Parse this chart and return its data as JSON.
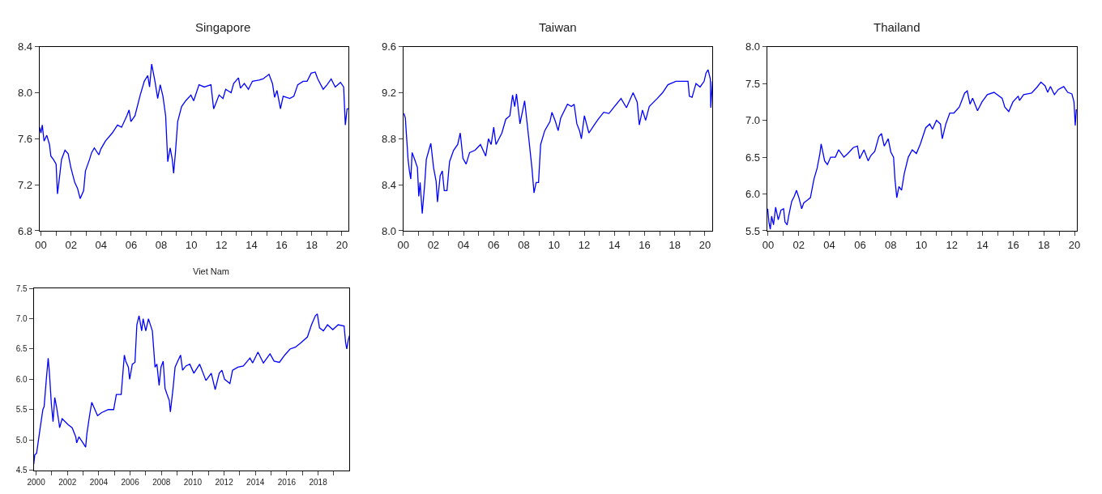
{
  "chart_data": [
    {
      "type": "line",
      "title": "Singapore",
      "xlim": [
        1999.9,
        2020.45
      ],
      "ylim": [
        6.8,
        8.4
      ],
      "yticks": [
        6.8,
        7.2,
        7.6,
        {
          "value": 8,
          "label": "8.0"
        },
        8.4
      ],
      "xticks": [
        {
          "value": 2000,
          "label": "00"
        },
        {
          "value": 2001,
          "label": null
        },
        {
          "value": 2002,
          "label": "02"
        },
        {
          "value": 2003,
          "label": null
        },
        {
          "value": 2004,
          "label": "04"
        },
        {
          "value": 2005,
          "label": null
        },
        {
          "value": 2006,
          "label": "06"
        },
        {
          "value": 2007,
          "label": null
        },
        {
          "value": 2008,
          "label": "08"
        },
        {
          "value": 2009,
          "label": null
        },
        {
          "value": 2010,
          "label": "10"
        },
        {
          "value": 2011,
          "label": null
        },
        {
          "value": 2012,
          "label": "12"
        },
        {
          "value": 2013,
          "label": null
        },
        {
          "value": 2014,
          "label": "14"
        },
        {
          "value": 2015,
          "label": null
        },
        {
          "value": 2016,
          "label": "16"
        },
        {
          "value": 2017,
          "label": null
        },
        {
          "value": 2018,
          "label": "18"
        },
        {
          "value": 2019,
          "label": null
        },
        {
          "value": 2020,
          "label": "20"
        }
      ],
      "x": [
        1999.91,
        2000.0,
        2000.09,
        2000.21,
        2000.39,
        2000.57,
        2000.66,
        2000.83,
        2001.01,
        2001.1,
        2001.22,
        2001.37,
        2001.6,
        2001.81,
        2001.99,
        2002.25,
        2002.43,
        2002.61,
        2002.84,
        2002.96,
        2003.23,
        2003.37,
        2003.55,
        2003.85,
        2003.98,
        2004.29,
        2004.74,
        2005.09,
        2005.36,
        2005.71,
        2005.86,
        2005.98,
        2006.25,
        2006.6,
        2006.87,
        2007.1,
        2007.22,
        2007.36,
        2007.58,
        2007.76,
        2007.93,
        2008.11,
        2008.29,
        2008.43,
        2008.59,
        2008.73,
        2008.82,
        2008.94,
        2009.09,
        2009.35,
        2009.62,
        2009.97,
        2010.15,
        2010.51,
        2010.86,
        2011.3,
        2011.48,
        2011.66,
        2011.84,
        2012.1,
        2012.28,
        2012.64,
        2012.81,
        2013.13,
        2013.26,
        2013.52,
        2013.79,
        2014.06,
        2014.5,
        2014.76,
        2015.16,
        2015.39,
        2015.53,
        2015.69,
        2015.92,
        2016.1,
        2016.54,
        2016.81,
        2017.07,
        2017.43,
        2017.69,
        2017.96,
        2018.23,
        2018.4,
        2018.76,
        2019.02,
        2019.29,
        2019.56,
        2019.91,
        2020.12,
        2020.23,
        2020.35,
        2020.44
      ],
      "series": [
        {
          "color": "#0000ff",
          "values": [
            7.7,
            7.65,
            7.72,
            7.58,
            7.63,
            7.55,
            7.45,
            7.42,
            7.38,
            7.12,
            7.25,
            7.42,
            7.5,
            7.47,
            7.35,
            7.22,
            7.17,
            7.08,
            7.15,
            7.32,
            7.42,
            7.48,
            7.52,
            7.46,
            7.51,
            7.58,
            7.65,
            7.72,
            7.7,
            7.8,
            7.85,
            7.75,
            7.8,
            7.98,
            8.1,
            8.15,
            8.05,
            8.25,
            8.1,
            7.95,
            8.07,
            7.97,
            7.8,
            7.4,
            7.52,
            7.42,
            7.3,
            7.48,
            7.75,
            7.88,
            7.93,
            7.98,
            7.93,
            8.07,
            8.05,
            8.07,
            7.86,
            7.92,
            7.98,
            7.95,
            8.03,
            8.0,
            8.08,
            8.13,
            8.04,
            8.08,
            8.03,
            8.1,
            8.11,
            8.12,
            8.16,
            8.08,
            7.96,
            8.02,
            7.86,
            7.97,
            7.95,
            7.97,
            8.07,
            8.1,
            8.1,
            8.17,
            8.18,
            8.12,
            8.03,
            8.07,
            8.12,
            8.05,
            8.09,
            8.05,
            7.72,
            7.86,
            7.86
          ]
        }
      ]
    },
    {
      "type": "line",
      "title": "Taiwan",
      "xlim": [
        2000.0,
        2020.5
      ],
      "ylim": [
        8.0,
        9.6
      ],
      "yticks": [
        {
          "value": 8,
          "label": "8.0"
        },
        8.4,
        8.8,
        9.2,
        9.6
      ],
      "xticks": [
        {
          "value": 2000,
          "label": "00"
        },
        {
          "value": 2001,
          "label": null
        },
        {
          "value": 2002,
          "label": "02"
        },
        {
          "value": 2003,
          "label": null
        },
        {
          "value": 2004,
          "label": "04"
        },
        {
          "value": 2005,
          "label": null
        },
        {
          "value": 2006,
          "label": "06"
        },
        {
          "value": 2007,
          "label": null
        },
        {
          "value": 2008,
          "label": "08"
        },
        {
          "value": 2009,
          "label": null
        },
        {
          "value": 2010,
          "label": "10"
        },
        {
          "value": 2011,
          "label": null
        },
        {
          "value": 2012,
          "label": "12"
        },
        {
          "value": 2013,
          "label": null
        },
        {
          "value": 2014,
          "label": "14"
        },
        {
          "value": 2015,
          "label": null
        },
        {
          "value": 2016,
          "label": "16"
        },
        {
          "value": 2017,
          "label": null
        },
        {
          "value": 2018,
          "label": "18"
        },
        {
          "value": 2019,
          "label": null
        },
        {
          "value": 2020,
          "label": "20"
        }
      ],
      "x": [
        2000.05,
        2000.14,
        2000.23,
        2000.32,
        2000.41,
        2000.5,
        2000.59,
        2000.76,
        2000.94,
        2001.03,
        2001.12,
        2001.26,
        2001.42,
        2001.53,
        2001.74,
        2001.83,
        2002.01,
        2002.18,
        2002.27,
        2002.45,
        2002.59,
        2002.72,
        2002.9,
        2003.07,
        2003.34,
        2003.61,
        2003.78,
        2003.96,
        2004.17,
        2004.4,
        2004.76,
        2005.12,
        2005.47,
        2005.65,
        2005.83,
        2006.0,
        2006.15,
        2006.54,
        2006.8,
        2007.07,
        2007.25,
        2007.39,
        2007.51,
        2007.74,
        2008.05,
        2008.31,
        2008.53,
        2008.67,
        2008.81,
        2008.97,
        2009.11,
        2009.38,
        2009.73,
        2009.86,
        2010.09,
        2010.27,
        2010.44,
        2010.89,
        2011.15,
        2011.33,
        2011.51,
        2011.69,
        2011.81,
        2012.01,
        2012.31,
        2012.66,
        2012.93,
        2013.29,
        2013.64,
        2014.0,
        2014.44,
        2014.8,
        2015.24,
        2015.51,
        2015.65,
        2015.86,
        2016.07,
        2016.31,
        2016.84,
        2017.19,
        2017.55,
        2018.08,
        2018.61,
        2018.88,
        2018.97,
        2019.15,
        2019.41,
        2019.68,
        2019.95,
        2020.07,
        2020.21,
        2020.36,
        2020.39,
        2020.5
      ],
      "series": [
        {
          "color": "#0000ff",
          "values": [
            9.02,
            8.98,
            8.8,
            8.62,
            8.52,
            8.45,
            8.68,
            8.62,
            8.55,
            8.3,
            8.42,
            8.15,
            8.4,
            8.62,
            8.72,
            8.76,
            8.55,
            8.43,
            8.25,
            8.48,
            8.52,
            8.35,
            8.35,
            8.6,
            8.7,
            8.75,
            8.85,
            8.63,
            8.58,
            8.68,
            8.7,
            8.75,
            8.65,
            8.8,
            8.75,
            8.9,
            8.75,
            8.85,
            8.97,
            9.0,
            9.18,
            9.08,
            9.19,
            8.93,
            9.13,
            8.82,
            8.55,
            8.33,
            8.42,
            8.42,
            8.75,
            8.87,
            8.95,
            9.03,
            8.95,
            8.87,
            8.98,
            9.1,
            9.08,
            9.1,
            8.93,
            8.87,
            8.8,
            9.0,
            8.85,
            8.92,
            8.97,
            9.03,
            9.02,
            9.08,
            9.15,
            9.07,
            9.2,
            9.12,
            8.92,
            9.05,
            8.96,
            9.08,
            9.15,
            9.2,
            9.27,
            9.3,
            9.3,
            9.3,
            9.17,
            9.16,
            9.28,
            9.25,
            9.3,
            9.37,
            9.4,
            9.32,
            9.07,
            9.3
          ]
        }
      ]
    },
    {
      "type": "line",
      "title": "Thailand",
      "xlim": [
        1999.93,
        2020.17
      ],
      "ylim": [
        5.5,
        8.0
      ],
      "yticks": [
        5.5,
        {
          "value": 6,
          "label": "6.0"
        },
        6.5,
        {
          "value": 7,
          "label": "7.0"
        },
        7.5,
        {
          "value": 8,
          "label": "8.0"
        }
      ],
      "xticks": [
        {
          "value": 2000,
          "label": "00"
        },
        {
          "value": 2001,
          "label": null
        },
        {
          "value": 2002,
          "label": "02"
        },
        {
          "value": 2003,
          "label": null
        },
        {
          "value": 2004,
          "label": "04"
        },
        {
          "value": 2005,
          "label": null
        },
        {
          "value": 2006,
          "label": "06"
        },
        {
          "value": 2007,
          "label": null
        },
        {
          "value": 2008,
          "label": "08"
        },
        {
          "value": 2009,
          "label": null
        },
        {
          "value": 2010,
          "label": "10"
        },
        {
          "value": 2011,
          "label": null
        },
        {
          "value": 2012,
          "label": "12"
        },
        {
          "value": 2013,
          "label": null
        },
        {
          "value": 2014,
          "label": "14"
        },
        {
          "value": 2015,
          "label": null
        },
        {
          "value": 2016,
          "label": "16"
        },
        {
          "value": 2017,
          "label": null
        },
        {
          "value": 2018,
          "label": "18"
        },
        {
          "value": 2019,
          "label": null
        },
        {
          "value": 2020,
          "label": "20"
        }
      ],
      "x": [
        1999.97,
        2000.05,
        2000.14,
        2000.23,
        2000.35,
        2000.49,
        2000.66,
        2000.84,
        2001.01,
        2001.1,
        2001.24,
        2001.36,
        2001.54,
        2001.71,
        2001.85,
        2002.01,
        2002.19,
        2002.33,
        2002.59,
        2002.76,
        2002.99,
        2003.2,
        2003.38,
        2003.46,
        2003.69,
        2003.87,
        2004.08,
        2004.39,
        2004.6,
        2004.95,
        2005.21,
        2005.56,
        2005.83,
        2005.97,
        2006.26,
        2006.53,
        2006.7,
        2006.96,
        2007.23,
        2007.4,
        2007.58,
        2007.84,
        2008.01,
        2008.19,
        2008.28,
        2008.4,
        2008.54,
        2008.71,
        2008.89,
        2009.15,
        2009.41,
        2009.68,
        2009.94,
        2010.29,
        2010.55,
        2010.73,
        2010.99,
        2011.25,
        2011.37,
        2011.6,
        2011.86,
        2012.13,
        2012.48,
        2012.83,
        2013.0,
        2013.18,
        2013.35,
        2013.67,
        2013.96,
        2014.31,
        2014.75,
        2015.28,
        2015.45,
        2015.71,
        2015.98,
        2016.33,
        2016.41,
        2016.68,
        2017.2,
        2017.55,
        2017.81,
        2018.08,
        2018.25,
        2018.43,
        2018.69,
        2018.95,
        2019.3,
        2019.56,
        2019.83,
        2019.97,
        2020.05,
        2020.12
      ],
      "series": [
        {
          "color": "#0000ff",
          "values": [
            5.8,
            5.62,
            5.52,
            5.7,
            5.58,
            5.82,
            5.65,
            5.78,
            5.8,
            5.62,
            5.58,
            5.72,
            5.9,
            5.97,
            6.05,
            5.95,
            5.8,
            5.88,
            5.92,
            5.95,
            6.2,
            6.35,
            6.55,
            6.68,
            6.45,
            6.4,
            6.5,
            6.5,
            6.6,
            6.5,
            6.55,
            6.63,
            6.65,
            6.48,
            6.6,
            6.45,
            6.52,
            6.58,
            6.78,
            6.82,
            6.65,
            6.75,
            6.57,
            6.5,
            6.2,
            5.95,
            6.1,
            6.05,
            6.28,
            6.5,
            6.6,
            6.55,
            6.68,
            6.9,
            6.95,
            6.88,
            7.0,
            6.95,
            6.75,
            6.95,
            7.1,
            7.1,
            7.18,
            7.37,
            7.4,
            7.22,
            7.3,
            7.13,
            7.25,
            7.35,
            7.38,
            7.3,
            7.18,
            7.12,
            7.25,
            7.33,
            7.27,
            7.35,
            7.37,
            7.45,
            7.52,
            7.47,
            7.38,
            7.46,
            7.35,
            7.42,
            7.46,
            7.38,
            7.36,
            7.25,
            6.93,
            7.15
          ]
        }
      ]
    },
    {
      "type": "line",
      "title": "Viet Nam",
      "xlim": [
        1999.85,
        2020.0
      ],
      "ylim": [
        4.5,
        7.5
      ],
      "yticks": [
        4.5,
        {
          "value": 5,
          "label": "5.0"
        },
        5.5,
        {
          "value": 6,
          "label": "6.0"
        },
        6.5,
        {
          "value": 7,
          "label": "7.0"
        },
        7.5
      ],
      "xticks": [
        {
          "value": 2000,
          "label": "2000"
        },
        {
          "value": 2001,
          "label": null
        },
        {
          "value": 2002,
          "label": "2002"
        },
        {
          "value": 2003,
          "label": null
        },
        {
          "value": 2004,
          "label": "2004"
        },
        {
          "value": 2005,
          "label": null
        },
        {
          "value": 2006,
          "label": "2006"
        },
        {
          "value": 2007,
          "label": null
        },
        {
          "value": 2008,
          "label": "2008"
        },
        {
          "value": 2009,
          "label": null
        },
        {
          "value": 2010,
          "label": "2010"
        },
        {
          "value": 2011,
          "label": null
        },
        {
          "value": 2012,
          "label": "2012"
        },
        {
          "value": 2013,
          "label": null
        },
        {
          "value": 2014,
          "label": "2014"
        },
        {
          "value": 2015,
          "label": null
        },
        {
          "value": 2016,
          "label": "2016"
        },
        {
          "value": 2017,
          "label": null
        },
        {
          "value": 2018,
          "label": "2018"
        },
        {
          "value": 2019,
          "label": null
        }
      ],
      "x": [
        1999.85,
        1999.91,
        2000.03,
        2000.26,
        2000.43,
        2000.51,
        2000.65,
        2000.77,
        2000.85,
        2000.97,
        2001.08,
        2001.19,
        2001.3,
        2001.45,
        2001.5,
        2001.66,
        2002.05,
        2002.3,
        2002.53,
        2002.59,
        2002.73,
        2002.99,
        2003.16,
        2003.24,
        2003.41,
        2003.55,
        2003.92,
        2004.18,
        2004.61,
        2004.95,
        2005.12,
        2005.43,
        2005.63,
        2005.72,
        2005.89,
        2005.97,
        2006.14,
        2006.31,
        2006.43,
        2006.57,
        2006.74,
        2006.83,
        2007.0,
        2007.17,
        2007.42,
        2007.59,
        2007.71,
        2007.85,
        2007.97,
        2008.11,
        2008.23,
        2008.36,
        2008.5,
        2008.57,
        2008.74,
        2008.87,
        2009.04,
        2009.22,
        2009.35,
        2009.56,
        2009.81,
        2010.07,
        2010.44,
        2010.84,
        2011.18,
        2011.43,
        2011.69,
        2011.86,
        2012.03,
        2012.37,
        2012.54,
        2012.88,
        2013.23,
        2013.65,
        2013.82,
        2014.16,
        2014.51,
        2014.93,
        2015.19,
        2015.53,
        2015.87,
        2016.21,
        2016.55,
        2016.89,
        2017.32,
        2017.58,
        2017.83,
        2017.95,
        2018.09,
        2018.34,
        2018.6,
        2018.94,
        2019.28,
        2019.66,
        2019.76,
        2019.83,
        2019.93,
        2020.0
      ],
      "series": [
        {
          "color": "#0000ff",
          "values": [
            4.6,
            4.75,
            4.78,
            5.2,
            5.5,
            5.55,
            6.0,
            6.35,
            6.1,
            5.6,
            5.3,
            5.7,
            5.55,
            5.3,
            5.2,
            5.35,
            5.25,
            5.2,
            5.05,
            4.95,
            5.05,
            4.95,
            4.88,
            5.1,
            5.4,
            5.62,
            5.4,
            5.45,
            5.5,
            5.5,
            5.75,
            5.75,
            6.4,
            6.3,
            6.2,
            6.0,
            6.25,
            6.28,
            6.9,
            7.05,
            6.8,
            7.0,
            6.8,
            7.0,
            6.8,
            6.2,
            6.25,
            5.9,
            6.2,
            6.3,
            5.85,
            5.75,
            5.65,
            5.46,
            5.85,
            6.2,
            6.3,
            6.4,
            6.15,
            6.22,
            6.25,
            6.1,
            6.25,
            5.98,
            6.1,
            5.83,
            6.1,
            6.15,
            6.0,
            5.93,
            6.15,
            6.2,
            6.22,
            6.35,
            6.27,
            6.45,
            6.27,
            6.42,
            6.3,
            6.28,
            6.4,
            6.5,
            6.53,
            6.6,
            6.7,
            6.9,
            7.05,
            7.08,
            6.85,
            6.8,
            6.9,
            6.82,
            6.9,
            6.88,
            6.6,
            6.5,
            6.65,
            6.72
          ]
        }
      ]
    }
  ]
}
